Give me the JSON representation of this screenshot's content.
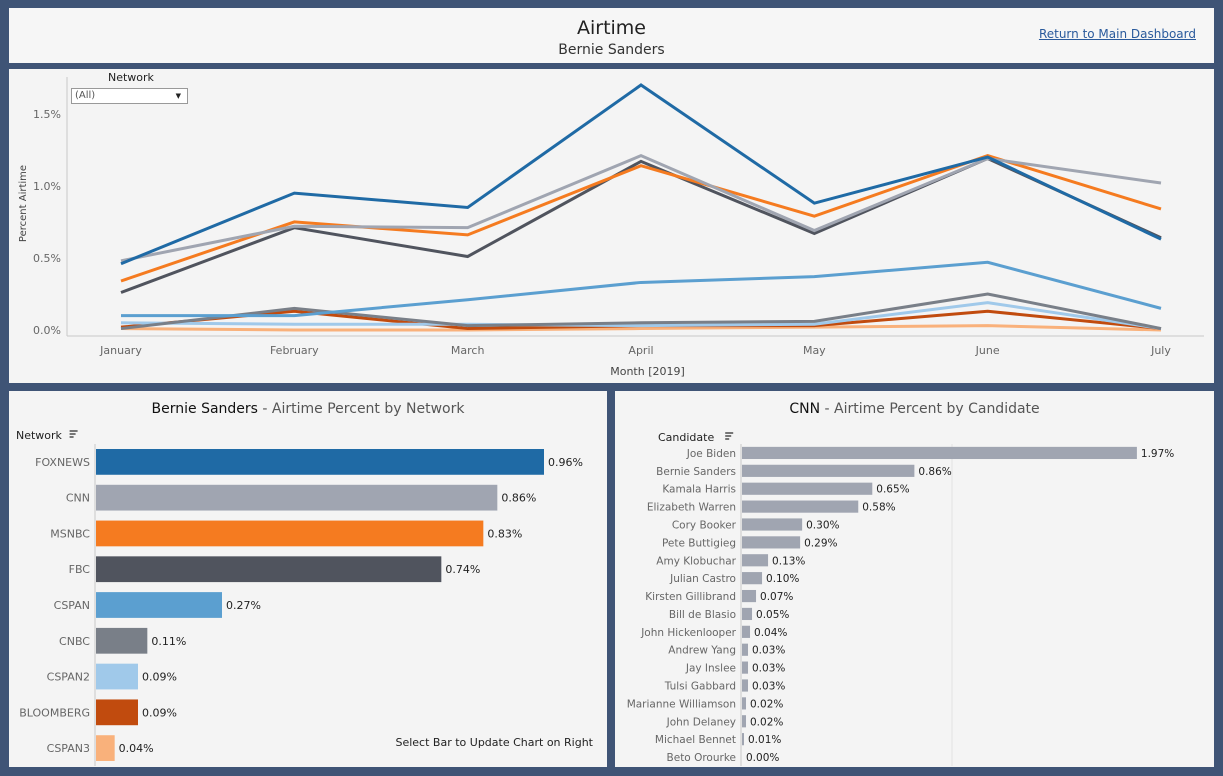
{
  "header": {
    "title": "Airtime",
    "subtitle": "Bernie Sanders",
    "return_link": "Return to Main Dashboard"
  },
  "filter": {
    "label": "Network",
    "value": "(All)"
  },
  "left_chart": {
    "title_bold": "Bernie Sanders",
    "title_rest": " - Airtime Percent by Network",
    "hint": "Select Bar to Update Chart on Right"
  },
  "right_chart": {
    "title_bold": "CNN",
    "title_rest": " - Airtime Percent by Candidate"
  },
  "chart_data": [
    {
      "type": "line",
      "xlabel": "Month [2019]",
      "ylabel": "Percent Airtime",
      "categories": [
        "January",
        "February",
        "March",
        "April",
        "May",
        "June",
        "July"
      ],
      "yticks": [
        "0.0%",
        "0.5%",
        "1.0%",
        "1.5%"
      ],
      "ylim": [
        0,
        1.7
      ],
      "grid": false,
      "series": [
        {
          "name": "FOXNEWS",
          "color": "#1f6aa5",
          "values": [
            0.46,
            0.95,
            0.85,
            1.7,
            0.88,
            1.2,
            0.63
          ]
        },
        {
          "name": "CNN",
          "color": "#a0a5b1",
          "values": [
            0.48,
            0.72,
            0.71,
            1.21,
            0.69,
            1.19,
            1.02
          ]
        },
        {
          "name": "MSNBC",
          "color": "#f57b20",
          "values": [
            0.34,
            0.75,
            0.66,
            1.14,
            0.79,
            1.21,
            0.84
          ]
        },
        {
          "name": "FBC",
          "color": "#50545e",
          "values": [
            0.26,
            0.71,
            0.51,
            1.17,
            0.67,
            1.19,
            0.64
          ]
        },
        {
          "name": "CSPAN",
          "color": "#5b9fd0",
          "values": [
            0.1,
            0.1,
            0.21,
            0.33,
            0.37,
            0.47,
            0.15
          ]
        },
        {
          "name": "CNBC",
          "color": "#797f88",
          "values": [
            0.01,
            0.15,
            0.03,
            0.05,
            0.06,
            0.25,
            0.01
          ]
        },
        {
          "name": "CSPAN2",
          "color": "#a0c9ea",
          "values": [
            0.05,
            0.04,
            0.04,
            0.03,
            0.04,
            0.19,
            0.01
          ]
        },
        {
          "name": "BLOOMBERG",
          "color": "#c14b0e",
          "values": [
            0.02,
            0.13,
            0.01,
            0.03,
            0.03,
            0.13,
            0.01
          ]
        },
        {
          "name": "CSPAN3",
          "color": "#f9b17b",
          "values": [
            0.01,
            0.0,
            0.0,
            0.01,
            0.02,
            0.03,
            0.0
          ]
        }
      ]
    },
    {
      "type": "bar",
      "orientation": "horizontal",
      "axis_label": "Network",
      "categories": [
        "FOXNEWS",
        "CNN",
        "MSNBC",
        "FBC",
        "CSPAN",
        "CNBC",
        "CSPAN2",
        "BLOOMBERG",
        "CSPAN3"
      ],
      "values": [
        0.96,
        0.86,
        0.83,
        0.74,
        0.27,
        0.11,
        0.09,
        0.09,
        0.04
      ],
      "labels": [
        "0.96%",
        "0.86%",
        "0.83%",
        "0.74%",
        "0.27%",
        "0.11%",
        "0.09%",
        "0.09%",
        "0.04%"
      ],
      "colors": [
        "#1f6aa5",
        "#a0a5b1",
        "#f57b20",
        "#50545e",
        "#5b9fd0",
        "#797f88",
        "#a0c9ea",
        "#c14b0e",
        "#f9b17b"
      ],
      "xlim": [
        0,
        1.05
      ]
    },
    {
      "type": "bar",
      "orientation": "horizontal",
      "axis_label": "Candidate",
      "categories": [
        "Joe Biden",
        "Bernie Sanders",
        "Kamala Harris",
        "Elizabeth Warren",
        "Cory Booker",
        "Pete Buttigieg",
        "Amy Klobuchar",
        "Julian Castro",
        "Kirsten Gillibrand",
        "Bill de Blasio",
        "John Hickenlooper",
        "Andrew Yang",
        "Jay Inslee",
        "Tulsi Gabbard",
        "Marianne Williamson",
        "John Delaney",
        "Michael Bennet",
        "Beto Orourke"
      ],
      "values": [
        1.97,
        0.86,
        0.65,
        0.58,
        0.3,
        0.29,
        0.13,
        0.1,
        0.07,
        0.05,
        0.04,
        0.03,
        0.03,
        0.03,
        0.02,
        0.02,
        0.01,
        0.0
      ],
      "labels": [
        "1.97%",
        "0.86%",
        "0.65%",
        "0.58%",
        "0.30%",
        "0.29%",
        "0.13%",
        "0.10%",
        "0.07%",
        "0.05%",
        "0.04%",
        "0.03%",
        "0.03%",
        "0.03%",
        "0.02%",
        "0.02%",
        "0.01%",
        "0.00%"
      ],
      "color": "#a0a5b1",
      "xlim": [
        0,
        2.2
      ]
    }
  ]
}
